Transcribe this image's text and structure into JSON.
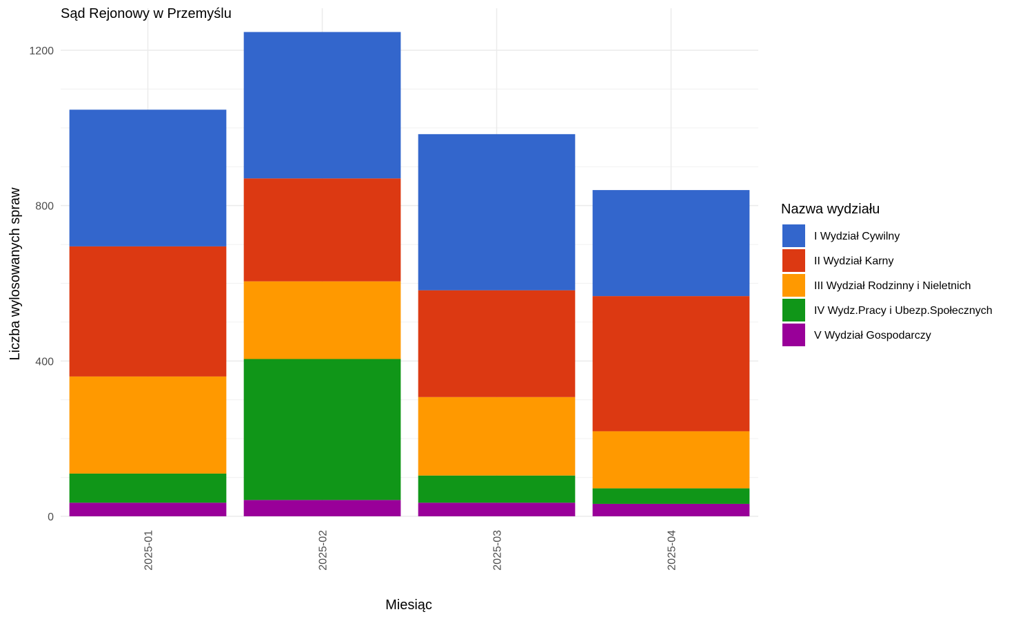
{
  "chart_data": {
    "type": "bar",
    "stacked": true,
    "title": "Sąd Rejonowy w Przemyślu",
    "xlabel": "Miesiąc",
    "ylabel": "Liczba wylosowanych spraw",
    "ylim": [
      0,
      1250
    ],
    "y_ticks": [
      0,
      400,
      800,
      1200
    ],
    "grid": true,
    "legend_position": "right",
    "legend_title": "Nazwa wydziału",
    "categories": [
      "2025-01",
      "2025-02",
      "2025-03",
      "2025-04"
    ],
    "series": [
      {
        "name": "V Wydział Gospodarczy",
        "color": "#990099",
        "values": [
          35,
          42,
          35,
          32
        ]
      },
      {
        "name": "IV Wydz.Pracy i Ubezp.Społecznych",
        "color": "#109618",
        "values": [
          75,
          363,
          70,
          40
        ]
      },
      {
        "name": "III Wydział Rodzinny i Nieletnich",
        "color": "#FF9900",
        "values": [
          250,
          200,
          202,
          147
        ]
      },
      {
        "name": "II Wydział Karny",
        "color": "#DC3912",
        "values": [
          335,
          265,
          275,
          348
        ]
      },
      {
        "name": "I Wydział Cywilny",
        "color": "#3366CC",
        "values": [
          352,
          377,
          402,
          273
        ]
      }
    ]
  }
}
